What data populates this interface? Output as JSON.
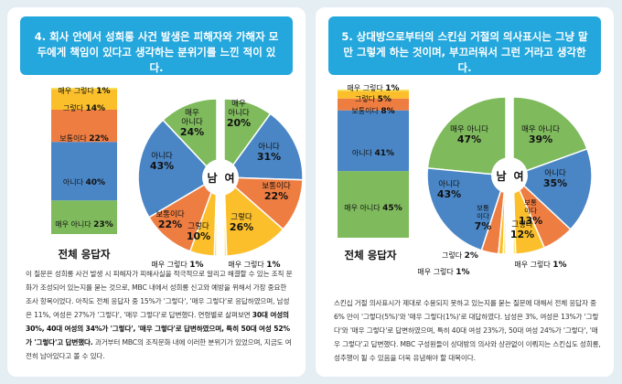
{
  "colors": {
    "very_no": "#7fba5d",
    "no": "#4a86c5",
    "neutral": "#ee7d42",
    "yes": "#fbbf2b",
    "very_yes": "#f7e259",
    "header": "#24a7dc"
  },
  "panels": [
    {
      "header": "4. 회사 안에서 성희롱 사건 발생은 피해자와 가해자 모두에게 책임이 있다고 생각하는 분위기를 느낀 적이 있다.",
      "total_label": "전체 응답자",
      "body_intro": "이 질문은 성희롱 사건 발생 시 피해자가 피해사실을 적극적으로 알리고 해결할 수 있는 조직 문화가 조성되어 있는지를 묻는 것으로, MBC 내에서 성희롱 신고와 예방을 위해서 가장 중요한 조사 항목이었다. 아직도 전체 응답자 중 15%가 '그렇다', '매우 그렇다'로 응답하였으며, 남성은 11%, 여성은 27%가 '그렇다', '매우 그렇다'로 답변했다. 연령별로 살펴보면",
      "body_bold": "30대 여성의 30%, 40대 여성의 34%가 '그렇다', '매우 그렇다'로 답변하였으며, 특히 50대 여성 52%가 '그렇다'고 답변했다.",
      "body_outro": "과거부터 MBC의 조직문화 내에 이러한 분위기가 있었으며, 지금도 여전히 남아있다고 볼 수 있다."
    },
    {
      "header": "5. 상대방으로부터의 스킨십 거절의 의사표시는 그냥 말만 그렇게 하는 것이며, 부끄러워서 그런 거라고 생각한다.",
      "total_label": "전체 응답자",
      "body_intro": "스킨십 거절 의사표시가 제대로 수용되지 못하고 있는지를 묻는 질문에 대해서 전체 응답자 중 6% 만이 '그렇다(5%)'와 '매우 그렇다(1%)'로 대답하였다. 남성은 3%, 여성은 13%가 '그렇다'와 '매우 그렇다'로 답변하였으며, 특히 40대 여성 23%가, 50대 여성 24%가 '그렇다', '매우 그렇다'고 답변했다. MBC 구성원들이 상대방의 의사와 상관없이 이뤄지는 스킨십도 성희롱, 성추행이 될 수 있음을 더욱 유념해야 할 대목이다.",
      "body_bold": "",
      "body_outro": ""
    }
  ],
  "chart_data": [
    {
      "type": "bar",
      "title": "전체 응답자",
      "orientation": "stacked-vertical",
      "categories": [
        "매우 아니다",
        "아니다",
        "보통이다",
        "그렇다",
        "매우 그렇다"
      ],
      "values": [
        23,
        40,
        22,
        14,
        1
      ],
      "value_labels": [
        "23%",
        "40%",
        "22%",
        "14%",
        "1%"
      ]
    },
    {
      "type": "pie",
      "title": "남",
      "categories": [
        "매우 아니다",
        "아니다",
        "보통이다",
        "그렇다",
        "매우 그렇다"
      ],
      "values": [
        24,
        43,
        22,
        10,
        1
      ],
      "value_labels": [
        "24%",
        "43%",
        "22%",
        "10%",
        "1%"
      ]
    },
    {
      "type": "pie",
      "title": "여",
      "categories": [
        "매우 아니다",
        "아니다",
        "보통이다",
        "그렇다",
        "매우 그렇다"
      ],
      "values": [
        20,
        31,
        22,
        26,
        1
      ],
      "value_labels": [
        "20%",
        "31%",
        "22%",
        "26%",
        "1%"
      ]
    },
    {
      "type": "bar",
      "title": "전체 응답자",
      "orientation": "stacked-vertical",
      "categories": [
        "매우 아니다",
        "아니다",
        "보통이다",
        "그렇다",
        "매우 그렇다"
      ],
      "values": [
        45,
        41,
        8,
        5,
        1
      ],
      "value_labels": [
        "45%",
        "41%",
        "8%",
        "5%",
        "1%"
      ]
    },
    {
      "type": "pie",
      "title": "남",
      "categories": [
        "매우 아니다",
        "아니다",
        "보통이다",
        "그렇다",
        "매우 그렇다"
      ],
      "values": [
        47,
        43,
        7,
        2,
        1
      ],
      "value_labels": [
        "47%",
        "43%",
        "7%",
        "2%",
        "1%"
      ]
    },
    {
      "type": "pie",
      "title": "여",
      "categories": [
        "매우 아니다",
        "아니다",
        "보통이다",
        "그렇다",
        "매우 그렇다"
      ],
      "values": [
        39,
        35,
        13,
        12,
        1
      ],
      "value_labels": [
        "39%",
        "35%",
        "13%",
        "12%",
        "1%"
      ]
    }
  ]
}
